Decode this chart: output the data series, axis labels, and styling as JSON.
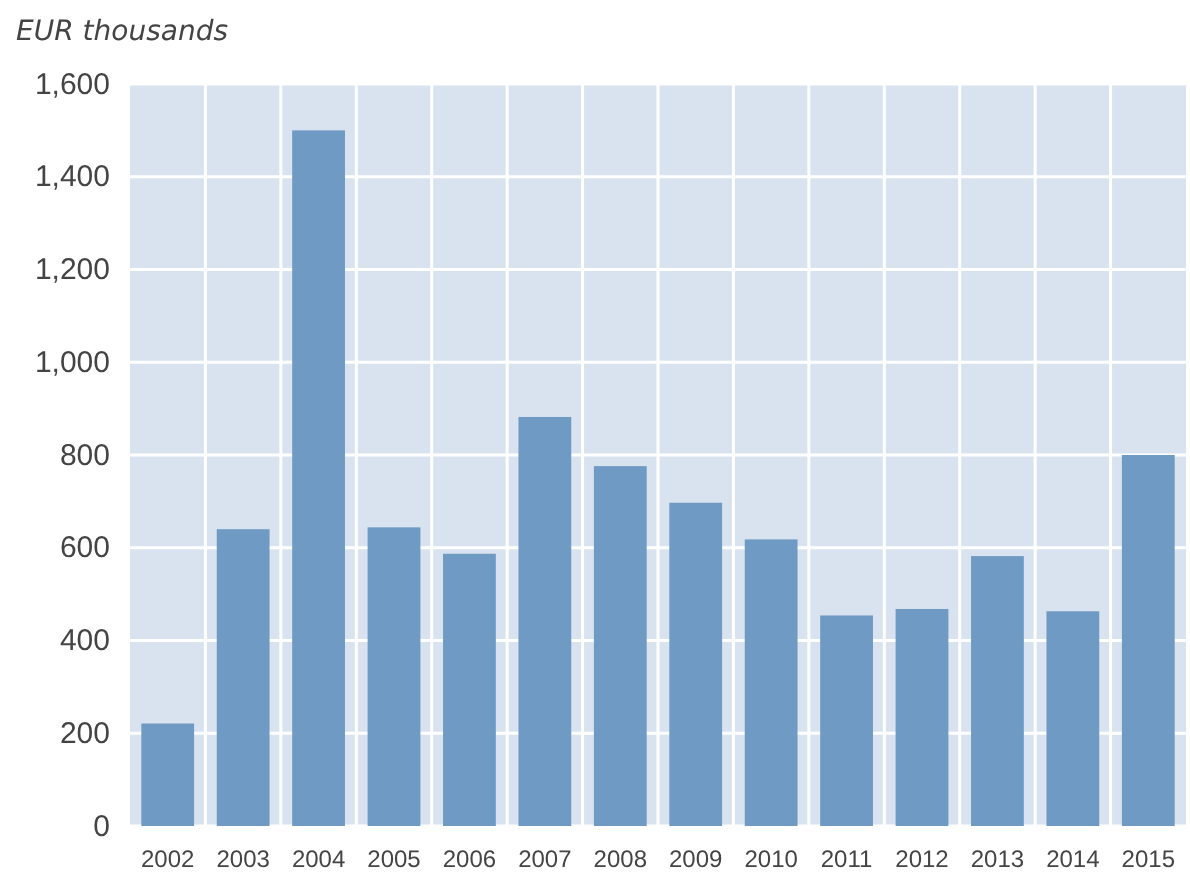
{
  "chart_data": {
    "type": "bar",
    "ylabel": "EUR thousands",
    "categories": [
      "2002",
      "2003",
      "2004",
      "2005",
      "2006",
      "2007",
      "2008",
      "2009",
      "2010",
      "2011",
      "2012",
      "2013",
      "2014",
      "2015"
    ],
    "values": [
      221,
      640,
      1500,
      644,
      587,
      882,
      776,
      697,
      618,
      454,
      468,
      582,
      463,
      800
    ],
    "color": "#6f9ac4",
    "ylim": [
      0,
      1600
    ],
    "yticks": [
      {
        "value": 0,
        "label": "0"
      },
      {
        "value": 200,
        "label": "200"
      },
      {
        "value": 400,
        "label": "400"
      },
      {
        "value": 600,
        "label": "600"
      },
      {
        "value": 800,
        "label": "800"
      },
      {
        "value": 1000,
        "label": "1,000"
      },
      {
        "value": 1200,
        "label": "1,200"
      },
      {
        "value": 1400,
        "label": "1,400"
      },
      {
        "value": 1600,
        "label": "1,600"
      }
    ],
    "grid": true
  }
}
